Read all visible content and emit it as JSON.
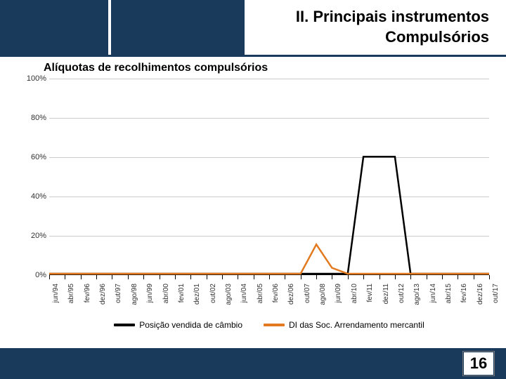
{
  "header": {
    "title_line1": "II. Principais instrumentos",
    "title_line2": "Compulsórios",
    "bg_color": "#1a3a5c",
    "text_color": "#000000"
  },
  "footer": {
    "page_number": "16",
    "bg_color": "#1a3a5c"
  },
  "chart": {
    "type": "line",
    "title": "Alíquotas de recolhimentos compulsórios",
    "title_fontsize": 16,
    "background_color": "#ffffff",
    "grid_color": "#cccccc",
    "axis_color": "#000000",
    "ylim": [
      0,
      100
    ],
    "ytick_step": 20,
    "y_ticks": [
      "0%",
      "20%",
      "40%",
      "60%",
      "80%",
      "100%"
    ],
    "y_tick_values": [
      0,
      20,
      40,
      60,
      80,
      100
    ],
    "x_categories": [
      "jun/94",
      "abr/95",
      "fev/96",
      "dez/96",
      "out/97",
      "ago/98",
      "jun/99",
      "abr/00",
      "fev/01",
      "dez/01",
      "out/02",
      "ago/03",
      "jun/04",
      "abr/05",
      "fev/06",
      "dez/06",
      "out/07",
      "ago/08",
      "jun/09",
      "abr/10",
      "fev/11",
      "dez/11",
      "out/12",
      "ago/13",
      "jun/14",
      "abr/15",
      "fev/16",
      "dez/16",
      "out/17"
    ],
    "x_label_fontsize": 10,
    "y_label_fontsize": 11,
    "series": [
      {
        "name": "Posição vendida de câmbio",
        "color": "#000000",
        "line_width": 2.5,
        "data": [
          0,
          0,
          0,
          0,
          0,
          0,
          0,
          0,
          0,
          0,
          0,
          0,
          0,
          0,
          0,
          0,
          0,
          0,
          0,
          0,
          60,
          60,
          60,
          0,
          0,
          0,
          0,
          0,
          0
        ]
      },
      {
        "name": "DI das Soc. Arrendamento mercantil",
        "color": "#e37a1f",
        "line_width": 2.5,
        "data": [
          0,
          0,
          0,
          0,
          0,
          0,
          0,
          0,
          0,
          0,
          0,
          0,
          0,
          0,
          0,
          0,
          0,
          15,
          3,
          0,
          0,
          0,
          0,
          0,
          0,
          0,
          0,
          0,
          0
        ]
      }
    ],
    "legend_position": "bottom"
  }
}
